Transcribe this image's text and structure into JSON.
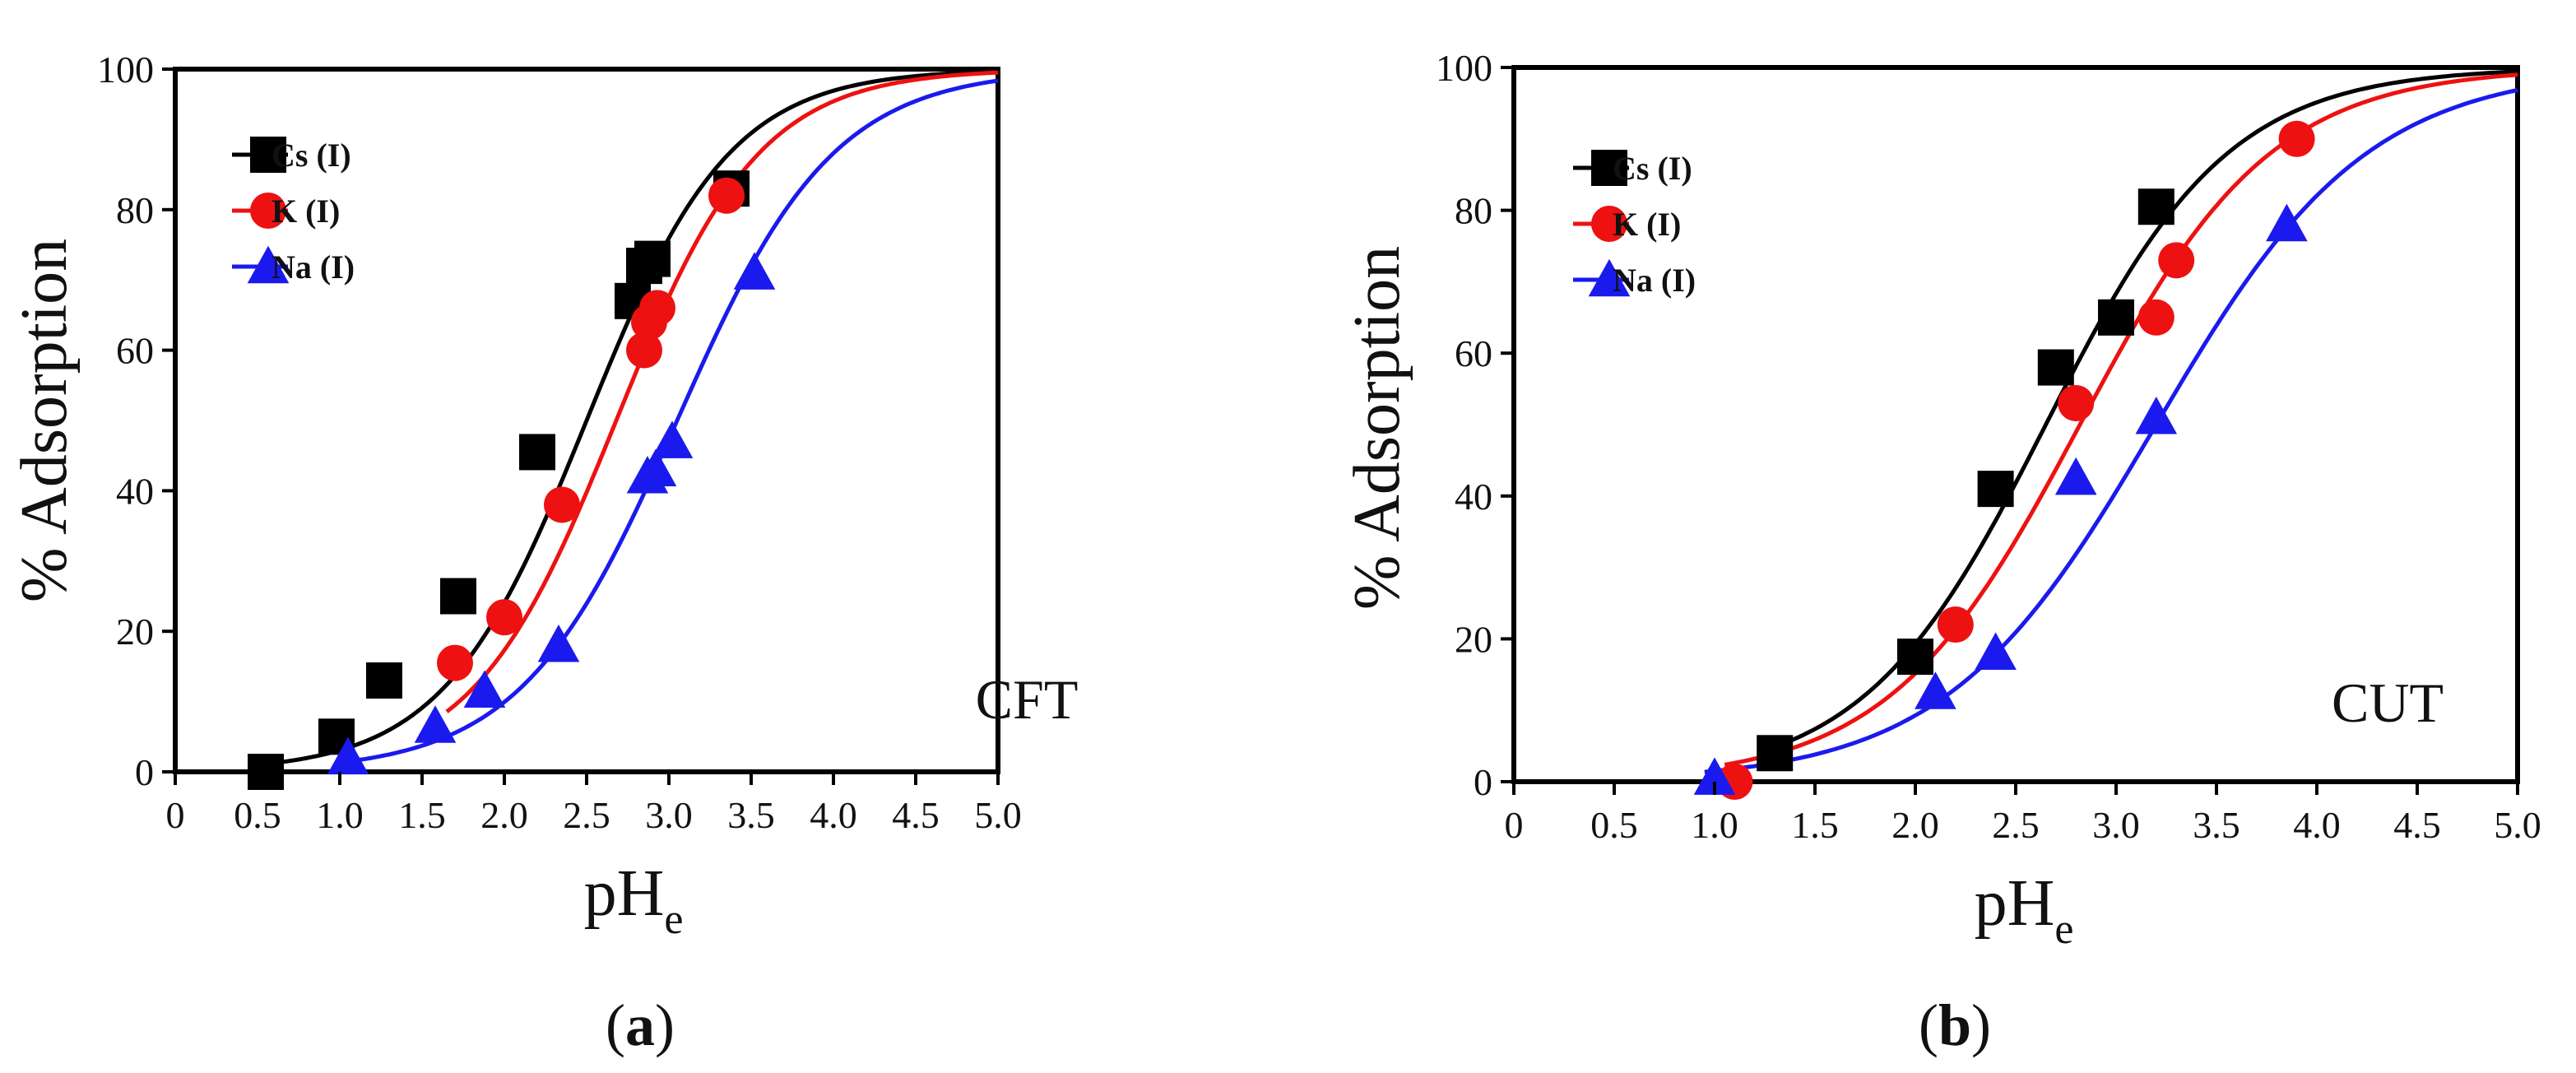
{
  "chart_data": [
    {
      "type": "scatter",
      "caption_letter": "a",
      "annotation": "CFT",
      "xlabel_main": "pH",
      "xlabel_sub": "e",
      "ylabel": "% Adsorption",
      "xlim": [
        0,
        5.0
      ],
      "ylim": [
        0,
        100
      ],
      "xticks": [
        "0",
        "0.5",
        "1.0",
        "1.5",
        "2.0",
        "2.5",
        "3.0",
        "3.5",
        "4.0",
        "4.5",
        "5.0"
      ],
      "yticks": [
        "0",
        "20",
        "40",
        "60",
        "80",
        "100"
      ],
      "legend_position": "top-left",
      "series": [
        {
          "name": "Cs  (I)",
          "color": "#000000",
          "marker": "square",
          "fit_midpoint": 2.5,
          "fit_slope": 2.3,
          "x": [
            0.55,
            0.98,
            1.27,
            1.72,
            2.2,
            2.78,
            2.85,
            2.9,
            3.38
          ],
          "y": [
            0,
            5,
            13,
            25,
            45.5,
            67,
            72,
            73,
            83
          ]
        },
        {
          "name": "K   (I)",
          "color": "#ee1111",
          "marker": "circle",
          "fit_midpoint": 2.68,
          "fit_slope": 2.3,
          "x": [
            1.7,
            2.0,
            2.35,
            2.85,
            2.88,
            2.93,
            3.35
          ],
          "y": [
            15.5,
            22,
            38,
            60,
            64,
            66,
            82
          ]
        },
        {
          "name": "Na (I)",
          "color": "#1a1aee",
          "marker": "triangle",
          "fit_midpoint": 3.05,
          "fit_slope": 2.1,
          "x": [
            1.05,
            1.58,
            1.88,
            2.33,
            2.87,
            2.92,
            3.02,
            3.52
          ],
          "y": [
            2,
            6.5,
            11.5,
            18,
            42,
            43,
            47,
            71
          ]
        }
      ]
    },
    {
      "type": "scatter",
      "caption_letter": "b",
      "annotation": "CUT",
      "xlabel_main": "pH",
      "xlabel_sub": "e",
      "ylabel": "% Adsorption",
      "xlim": [
        0,
        5.0
      ],
      "ylim": [
        0,
        100
      ],
      "xticks": [
        "0",
        "0.5",
        "1.0",
        "1.5",
        "2.0",
        "2.5",
        "3.0",
        "3.5",
        "4.0",
        "4.5",
        "5.0"
      ],
      "yticks": [
        "0",
        "20",
        "40",
        "60",
        "80",
        "100"
      ],
      "legend_position": "top-left",
      "series": [
        {
          "name": "Cs  (I)",
          "color": "#000000",
          "marker": "square",
          "fit_midpoint": 2.65,
          "fit_slope": 2.2,
          "x": [
            1.3,
            2.0,
            2.4,
            2.7,
            3.0,
            3.2
          ],
          "y": [
            4,
            17.5,
            41,
            58,
            65,
            80.5
          ]
        },
        {
          "name": "K   (I)",
          "color": "#ee1111",
          "marker": "circle",
          "fit_midpoint": 2.82,
          "fit_slope": 2.1,
          "x": [
            1.1,
            2.2,
            2.8,
            3.2,
            3.3,
            3.9
          ],
          "y": [
            0,
            22,
            53,
            65,
            73,
            90
          ]
        },
        {
          "name": "Na (I)",
          "color": "#1a1aee",
          "marker": "triangle",
          "fit_midpoint": 3.2,
          "fit_slope": 1.9,
          "x": [
            1.0,
            2.1,
            2.4,
            2.8,
            3.2,
            3.85
          ],
          "y": [
            0.5,
            12.5,
            18,
            42.5,
            51,
            78
          ]
        }
      ]
    }
  ]
}
